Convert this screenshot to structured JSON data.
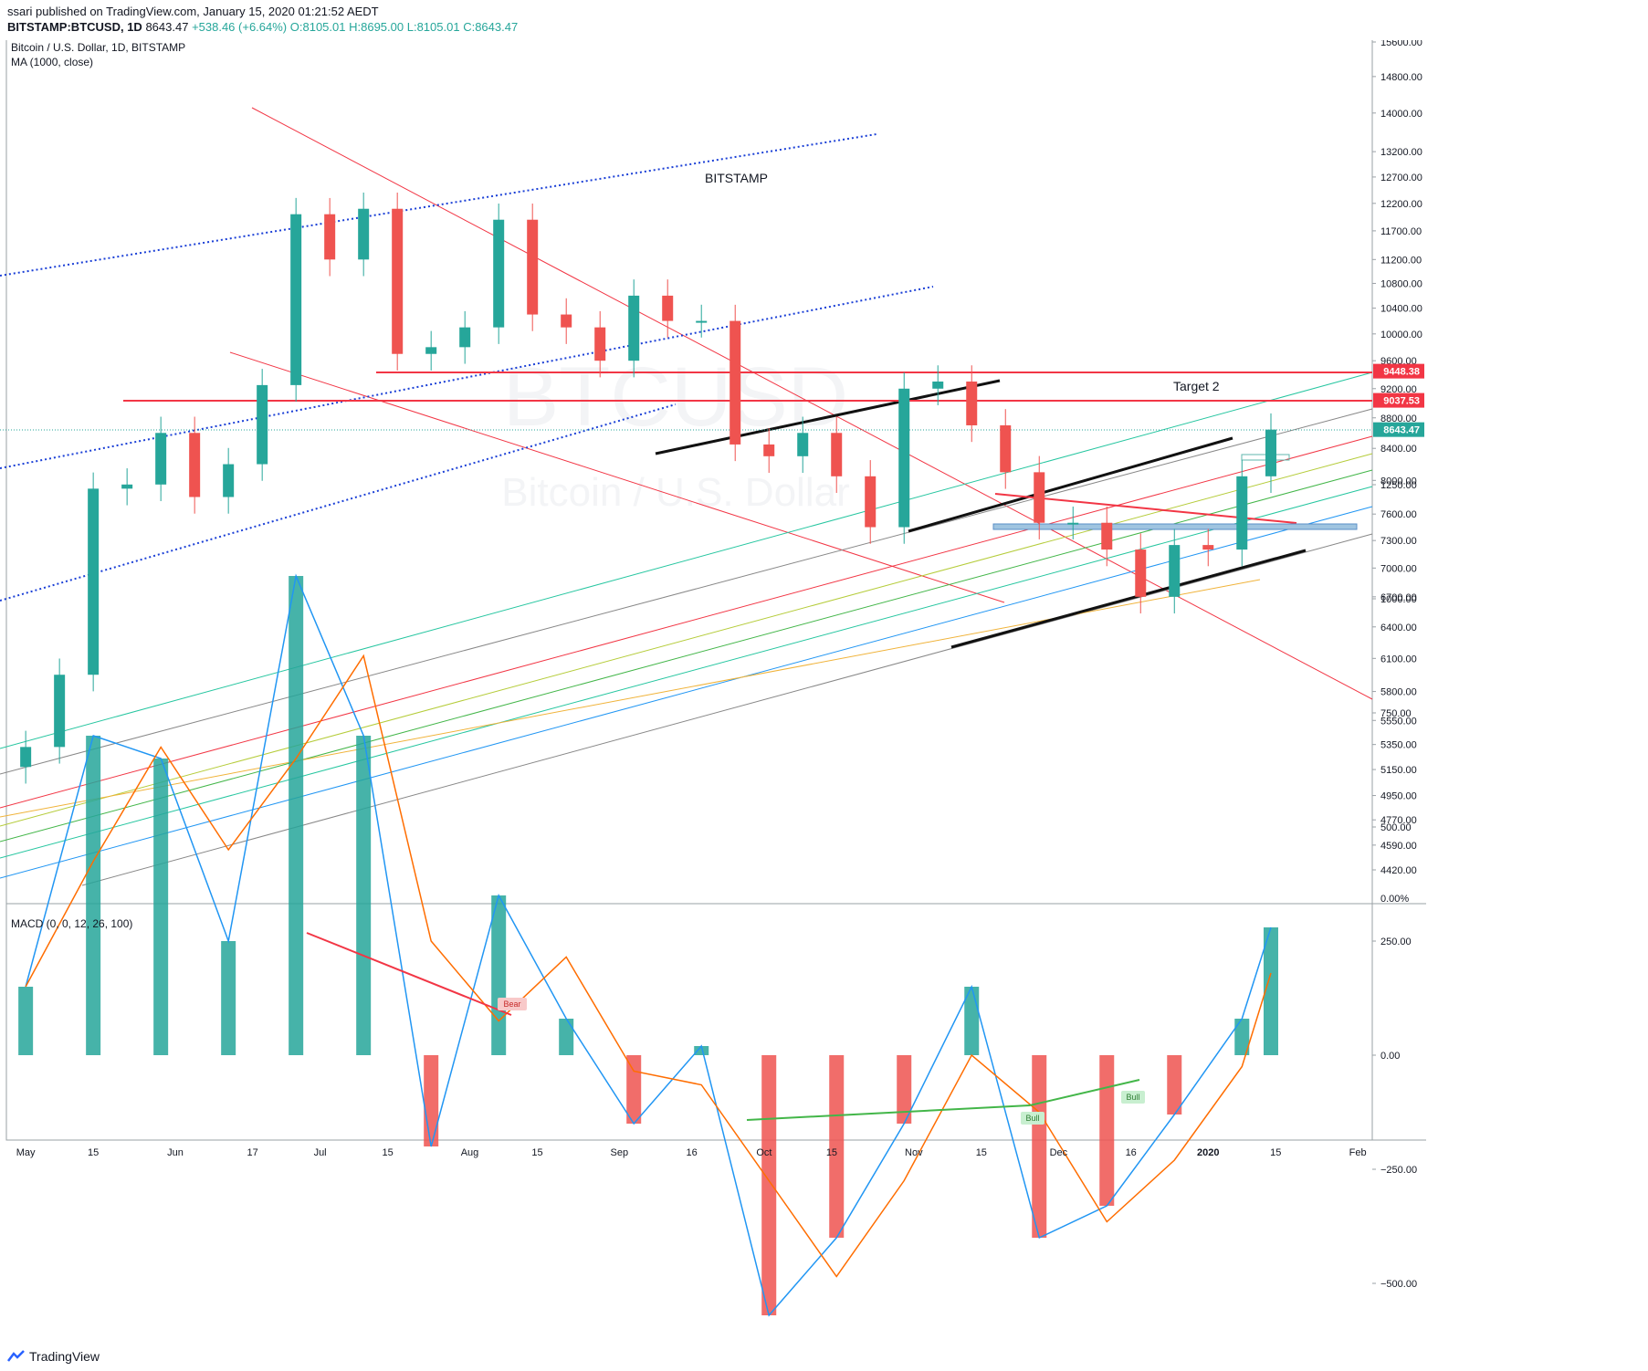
{
  "header": {
    "published": "ssari published on TradingView.com, January 15, 2020 01:21:52 AEDT",
    "symbol": "BITSTAMP:BTCUSD, 1D",
    "last": "8643.47",
    "change": "+538.46 (+6.64%)",
    "open": "O:8105.01",
    "high": "H:8695.00",
    "low": "L:8105.01",
    "close": "C:8643.47"
  },
  "legend": {
    "title": "Bitcoin / U.S. Dollar, 1D, BITSTAMP",
    "ma": "MA (1000, close)",
    "macd": "MACD (0, 0, 12, 26, 100)"
  },
  "watermark": {
    "line1": "BTCUSD",
    "line2": "Bitcoin / U.S. Dollar"
  },
  "annotations": {
    "bitstamp": "BITSTAMP",
    "target2": "Target 2",
    "bear": "Bear",
    "bull1": "Bull",
    "bull2": "Bull"
  },
  "price_labels": {
    "r1": "9448.38",
    "r2": "9037.53",
    "last": "8643.47"
  },
  "colors": {
    "up": "#26a69a",
    "down": "#ef5350",
    "resistance": "#f23645",
    "macd_line": "#2196f3",
    "signal_line": "#ff6d00"
  },
  "footer": {
    "brand": "TradingView"
  },
  "chart_data": [
    {
      "type": "candlestick",
      "title": "Bitcoin / U.S. Dollar, 1D, BITSTAMP",
      "x_ticks": [
        "May",
        "15",
        "Jun",
        "17",
        "Jul",
        "15",
        "Aug",
        "15",
        "Sep",
        "16",
        "Oct",
        "15",
        "Nov",
        "15",
        "Dec",
        "16",
        "2020",
        "15",
        "Feb"
      ],
      "y_ticks": [
        "15600.00",
        "14800.00",
        "14000.00",
        "13200.00",
        "12700.00",
        "12200.00",
        "11700.00",
        "11200.00",
        "10800.00",
        "10400.00",
        "10000.00",
        "9600.00",
        "9200.00",
        "8800.00",
        "8400.00",
        "8000.00",
        "7600.00",
        "7300.00",
        "7000.00",
        "6700.00",
        "6400.00",
        "6100.00",
        "5800.00",
        "5550.00",
        "5350.00",
        "5150.00",
        "4950.00",
        "4770.00",
        "4590.00",
        "4420.00"
      ],
      "y_scale": "log",
      "ylim": [
        4300,
        15900
      ],
      "x_range": [
        "2019-04-27",
        "2020-02-04"
      ],
      "horizontal_levels": [
        9448.38,
        9037.53
      ],
      "last_price": 8643.47,
      "closes_weekly": [
        {
          "date": "2019-05-01",
          "close": 5330
        },
        {
          "date": "2019-05-08",
          "close": 5950
        },
        {
          "date": "2019-05-15",
          "close": 7900
        },
        {
          "date": "2019-05-22",
          "close": 7950
        },
        {
          "date": "2019-05-29",
          "close": 8600
        },
        {
          "date": "2019-06-05",
          "close": 7800
        },
        {
          "date": "2019-06-12",
          "close": 8200
        },
        {
          "date": "2019-06-19",
          "close": 9250
        },
        {
          "date": "2019-06-26",
          "close": 12000
        },
        {
          "date": "2019-07-03",
          "close": 11200
        },
        {
          "date": "2019-07-10",
          "close": 12100
        },
        {
          "date": "2019-07-17",
          "close": 9700
        },
        {
          "date": "2019-07-24",
          "close": 9800
        },
        {
          "date": "2019-07-31",
          "close": 10100
        },
        {
          "date": "2019-08-07",
          "close": 11900
        },
        {
          "date": "2019-08-14",
          "close": 10300
        },
        {
          "date": "2019-08-21",
          "close": 10100
        },
        {
          "date": "2019-08-28",
          "close": 9600
        },
        {
          "date": "2019-09-04",
          "close": 10600
        },
        {
          "date": "2019-09-11",
          "close": 10200
        },
        {
          "date": "2019-09-18",
          "close": 10200
        },
        {
          "date": "2019-09-25",
          "close": 8450
        },
        {
          "date": "2019-10-02",
          "close": 8300
        },
        {
          "date": "2019-10-09",
          "close": 8600
        },
        {
          "date": "2019-10-16",
          "close": 8050
        },
        {
          "date": "2019-10-23",
          "close": 7450
        },
        {
          "date": "2019-10-30",
          "close": 9200
        },
        {
          "date": "2019-11-06",
          "close": 9300
        },
        {
          "date": "2019-11-13",
          "close": 8700
        },
        {
          "date": "2019-11-20",
          "close": 8100
        },
        {
          "date": "2019-11-27",
          "close": 7500
        },
        {
          "date": "2019-12-04",
          "close": 7500
        },
        {
          "date": "2019-12-11",
          "close": 7200
        },
        {
          "date": "2019-12-18",
          "close": 6700
        },
        {
          "date": "2019-12-25",
          "close": 7250
        },
        {
          "date": "2020-01-01",
          "close": 7200
        },
        {
          "date": "2020-01-08",
          "close": 8050
        },
        {
          "date": "2020-01-14",
          "close": 8643.47
        }
      ]
    },
    {
      "type": "bar",
      "title": "MACD (0, 0, 12, 26, 100)",
      "y_ticks": [
        "1250.00",
        "1000.00",
        "750.00",
        "500.00",
        "250.00",
        "0.00",
        "−250.00",
        "−500.00"
      ],
      "ylim": [
        -720,
        1250
      ],
      "macd_weekly": [
        {
          "date": "2019-05-01",
          "macd": 150
        },
        {
          "date": "2019-05-15",
          "macd": 700
        },
        {
          "date": "2019-05-29",
          "macd": 650
        },
        {
          "date": "2019-06-12",
          "macd": 250
        },
        {
          "date": "2019-06-26",
          "macd": 1050
        },
        {
          "date": "2019-07-10",
          "macd": 700
        },
        {
          "date": "2019-07-24",
          "macd": -200
        },
        {
          "date": "2019-08-07",
          "macd": 350
        },
        {
          "date": "2019-08-21",
          "macd": 80
        },
        {
          "date": "2019-09-04",
          "macd": -150
        },
        {
          "date": "2019-09-18",
          "macd": 20
        },
        {
          "date": "2019-10-02",
          "macd": -570
        },
        {
          "date": "2019-10-16",
          "macd": -400
        },
        {
          "date": "2019-10-30",
          "macd": -150
        },
        {
          "date": "2019-11-13",
          "macd": 150
        },
        {
          "date": "2019-11-27",
          "macd": -400
        },
        {
          "date": "2019-12-11",
          "macd": -330
        },
        {
          "date": "2019-12-25",
          "macd": -130
        },
        {
          "date": "2020-01-08",
          "macd": 80
        },
        {
          "date": "2020-01-14",
          "macd": 280
        }
      ]
    }
  ]
}
